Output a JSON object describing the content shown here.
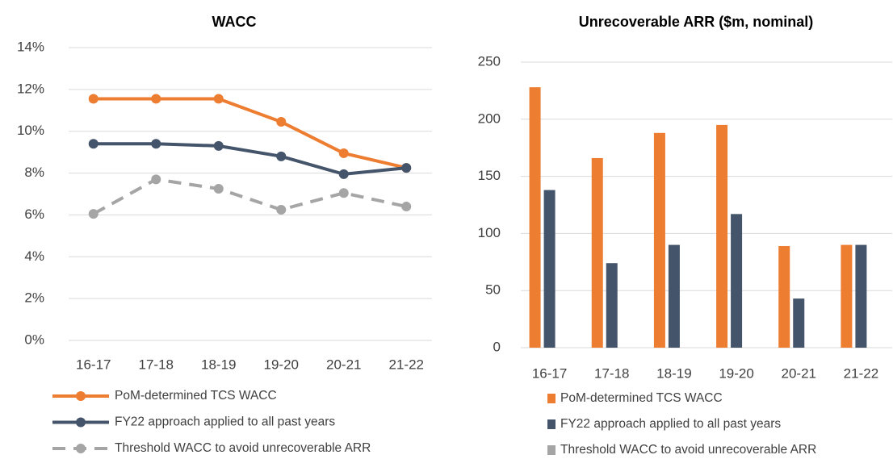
{
  "chart_data": [
    {
      "type": "line",
      "title": "WACC",
      "categories": [
        "16-17",
        "17-18",
        "18-19",
        "19-20",
        "20-21",
        "21-22"
      ],
      "series": [
        {
          "name": "PoM-determined TCS WACC",
          "color": "#ED7D31",
          "line_style": "solid",
          "values": [
            11.55,
            11.55,
            11.55,
            10.45,
            8.95,
            8.25
          ]
        },
        {
          "name": "FY22 approach applied to all past years",
          "color": "#44546A",
          "line_style": "solid",
          "values": [
            9.4,
            9.4,
            9.3,
            8.8,
            7.95,
            8.25
          ]
        },
        {
          "name": "Threshold WACC to avoid unrecoverable ARR",
          "color": "#A5A5A5",
          "line_style": "dashed",
          "values": [
            6.05,
            7.7,
            7.25,
            6.25,
            7.05,
            6.4
          ]
        }
      ],
      "ylim": [
        0,
        14
      ],
      "yticks": [
        {
          "value": 0,
          "label": "0%"
        },
        {
          "value": 2,
          "label": "2%"
        },
        {
          "value": 4,
          "label": "4%"
        },
        {
          "value": 6,
          "label": "6%"
        },
        {
          "value": 8,
          "label": "8%"
        },
        {
          "value": 10,
          "label": "10%"
        },
        {
          "value": 12,
          "label": "12%"
        },
        {
          "value": 14,
          "label": "14%"
        }
      ],
      "grid": true,
      "legend": "bottom"
    },
    {
      "type": "bar",
      "title": "Unrecoverable ARR ($m, nominal)",
      "categories": [
        "16-17",
        "17-18",
        "18-19",
        "19-20",
        "20-21",
        "21-22"
      ],
      "series": [
        {
          "name": "PoM-determined TCS WACC",
          "color": "#ED7D31",
          "values": [
            228,
            166,
            188,
            195,
            89,
            90
          ]
        },
        {
          "name": "FY22 approach applied to all past years",
          "color": "#44546A",
          "values": [
            138,
            74,
            90,
            117,
            43,
            90
          ]
        },
        {
          "name": "Threshold WACC to avoid unrecoverable ARR",
          "color": "#A5A5A5",
          "values": [
            null,
            null,
            null,
            null,
            null,
            null
          ]
        }
      ],
      "ylim": [
        0,
        250
      ],
      "yticks": [
        0,
        50,
        100,
        150,
        200,
        250
      ],
      "grid": true,
      "legend": "bottom"
    }
  ]
}
